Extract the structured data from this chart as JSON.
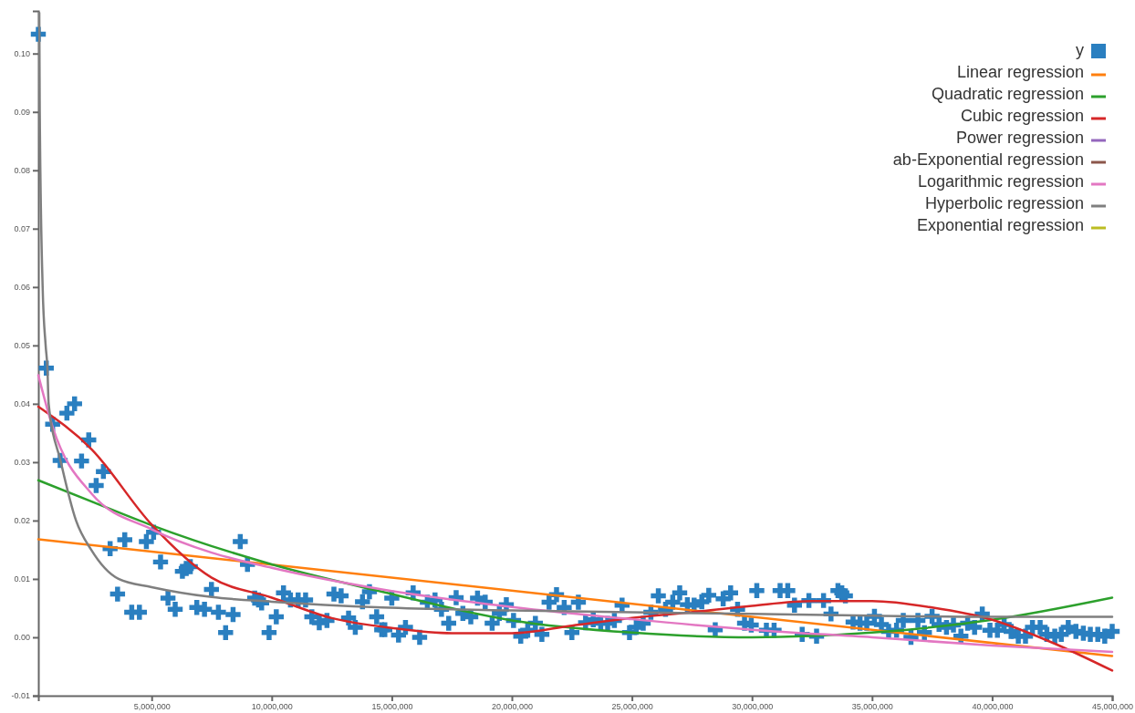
{
  "chart_data": {
    "type": "scatter",
    "xlim": [
      280000,
      45000000
    ],
    "ylim": [
      -0.01,
      0.1073
    ],
    "xticks": [
      {
        "value": 5000000,
        "label": "5,000,000"
      },
      {
        "value": 10000000,
        "label": "10,000,000"
      },
      {
        "value": 15000000,
        "label": "15,000,000"
      },
      {
        "value": 20000000,
        "label": "20,000,000"
      },
      {
        "value": 25000000,
        "label": "25,000,000"
      },
      {
        "value": 30000000,
        "label": "30,000,000"
      },
      {
        "value": 35000000,
        "label": "35,000,000"
      },
      {
        "value": 40000000,
        "label": "40,000,000"
      },
      {
        "value": 45000000,
        "label": "45,000,000"
      }
    ],
    "yticks": [
      -0.01,
      {
        "value": 0,
        "label": "0.00"
      },
      0.01,
      0.02,
      0.03,
      0.04,
      0.05,
      0.06,
      0.07,
      0.08,
      0.09,
      {
        "value": 0.1,
        "label": "0.10"
      }
    ],
    "grid": false,
    "legend": "top right",
    "series": [
      {
        "name": "y",
        "marker": "cross",
        "color": "#2a7fc0",
        "x": [
          280000,
          612000,
          877000,
          1190000,
          1470000,
          1790000,
          2080000,
          2380000,
          2690000,
          2990000,
          3270000,
          3580000,
          3880000,
          4170000,
          4490000,
          4780000,
          5080000,
          5370000,
          5680000,
          5980000,
          6280000,
          6440000,
          6610000,
          6880000,
          7200000,
          7490000,
          7780000,
          8080000,
          8390000,
          8690000,
          8990000,
          9290000,
          9450000,
          9580000,
          9890000,
          10190000,
          10490000,
          10780000,
          11100000,
          11410000,
          11670000,
          11980000,
          12300000,
          12590000,
          12890000,
          13200000,
          13480000,
          13780000,
          14070000,
          14370000,
          14580000,
          14710000,
          15000000,
          15280000,
          15570000,
          15890000,
          16160000,
          16480000,
          16800000,
          17070000,
          17370000,
          17680000,
          17960000,
          18290000,
          18570000,
          18890000,
          19180000,
          19480000,
          19770000,
          20070000,
          20370000,
          20660000,
          20980000,
          21250000,
          21550000,
          21860000,
          22180000,
          22500000,
          22770000,
          23070000,
          23390000,
          23700000,
          23990000,
          24270000,
          24590000,
          24900000,
          25180000,
          25470000,
          25790000,
          26100000,
          26400000,
          26700000,
          26990000,
          27310000,
          27590000,
          27910000,
          28200000,
          28470000,
          28800000,
          29110000,
          29400000,
          29690000,
          29970000,
          30200000,
          30600000,
          30920000,
          31170000,
          31490000,
          31770000,
          32090000,
          32370000,
          32690000,
          32980000,
          33290000,
          33580000,
          33740000,
          33890000,
          34210000,
          34500000,
          34780000,
          35100000,
          35390000,
          35690000,
          36020000,
          36300000,
          36620000,
          36910000,
          37180000,
          37500000,
          37790000,
          38100000,
          38390000,
          38700000,
          38980000,
          39270000,
          39590000,
          39910000,
          40220000,
          40500000,
          40790000,
          41090000,
          41390000,
          41680000,
          42000000,
          42280000,
          42610000,
          42880000,
          43170000,
          43490000,
          43800000,
          44090000,
          44400000,
          44690000,
          45000000
        ],
        "values": [
          0.1033,
          0.0461,
          0.0365,
          0.0303,
          0.0384,
          0.04,
          0.0302,
          0.0338,
          0.026,
          0.0284,
          0.0152,
          0.0074,
          0.0167,
          0.0043,
          0.0043,
          0.0164,
          0.018,
          0.0129,
          0.0067,
          0.0048,
          0.0113,
          0.0118,
          0.0121,
          0.0051,
          0.0048,
          0.0082,
          0.0043,
          0.0008,
          0.0039,
          0.0164,
          0.0125,
          0.0067,
          0.0064,
          0.0059,
          0.0008,
          0.0035,
          0.0076,
          0.0064,
          0.0064,
          0.0064,
          0.0035,
          0.0025,
          0.0029,
          0.0074,
          0.0071,
          0.0033,
          0.0017,
          0.0061,
          0.0078,
          0.0035,
          0.0013,
          0.0013,
          0.0067,
          0.0004,
          0.0017,
          0.0076,
          0.0,
          0.006,
          0.0064,
          0.0048,
          0.0024,
          0.0068,
          0.0041,
          0.0035,
          0.0067,
          0.006,
          0.0024,
          0.0041,
          0.0056,
          0.0029,
          0.0002,
          0.0012,
          0.0024,
          0.0005,
          0.006,
          0.0073,
          0.0051,
          0.0008,
          0.006,
          0.0025,
          0.003,
          0.0024,
          0.0024,
          0.0029,
          0.0055,
          0.0008,
          0.0017,
          0.0024,
          0.0043,
          0.0071,
          0.0048,
          0.006,
          0.0076,
          0.0056,
          0.0055,
          0.0061,
          0.0072,
          0.0013,
          0.0066,
          0.0076,
          0.0048,
          0.0024,
          0.0021,
          0.008,
          0.0012,
          0.0012,
          0.008,
          0.008,
          0.0055,
          0.0005,
          0.0063,
          0.0002,
          0.0063,
          0.004,
          0.008,
          0.0076,
          0.0071,
          0.0026,
          0.0024,
          0.0024,
          0.0036,
          0.0022,
          0.001,
          0.0012,
          0.0029,
          0.0,
          0.0029,
          0.0008,
          0.0036,
          0.0022,
          0.0017,
          0.0021,
          0.0002,
          0.0024,
          0.0017,
          0.004,
          0.0012,
          0.0012,
          0.0022,
          0.001,
          0.0002,
          0.0002,
          0.0017,
          0.0017,
          0.0005,
          0.0002,
          0.0005,
          0.0017,
          0.001,
          0.0007,
          0.0005,
          0.0005,
          0.0002,
          0.001
        ]
      },
      {
        "name": "Linear regression",
        "type": "line",
        "color": "#ff7f0e",
        "x": [
          280000,
          45000000
        ],
        "values": [
          0.0168,
          -0.0032
        ]
      },
      {
        "name": "Quadratic regression",
        "type": "line",
        "color": "#2ca02c",
        "x": [
          280000,
          2600000,
          5000000,
          10000000,
          14400000,
          20000000,
          25000000,
          30000000,
          35000000,
          40000000,
          45000000
        ],
        "values": [
          0.0269,
          0.0231,
          0.0192,
          0.0125,
          0.008,
          0.0029,
          0.0008,
          0.0,
          0.0008,
          0.003,
          0.0068
        ]
      },
      {
        "name": "Cubic regression",
        "type": "line",
        "color": "#d62728",
        "x": [
          280000,
          2500000,
          5000000,
          7500000,
          10000000,
          12500000,
          15000000,
          17500000,
          20000000,
          22500000,
          25000000,
          27500000,
          30000000,
          32500000,
          35000000,
          37500000,
          40000000,
          42500000,
          45000000
        ],
        "values": [
          0.0395,
          0.0322,
          0.0193,
          0.0102,
          0.0068,
          0.0033,
          0.0016,
          0.0007,
          0.0007,
          0.002,
          0.0033,
          0.0043,
          0.0054,
          0.0062,
          0.0062,
          0.0051,
          0.003,
          -0.0009,
          -0.0057
        ]
      },
      {
        "name": "Power regression",
        "type": "line",
        "color": "#9467bd"
      },
      {
        "name": "ab-Exponential regression",
        "type": "line",
        "color": "#8c564b"
      },
      {
        "name": "Logarithmic regression",
        "type": "line",
        "color": "#e377c2",
        "x": [
          280000,
          877000,
          2500000,
          5000000,
          7500000,
          10000000,
          14600000,
          20000000,
          25000000,
          30000000,
          35000000,
          40000000,
          45000000
        ],
        "values": [
          0.0449,
          0.036,
          0.0246,
          0.0185,
          0.0145,
          0.0119,
          0.0082,
          0.0052,
          0.0031,
          0.0013,
          0.0,
          -0.0014,
          -0.0025
        ]
      },
      {
        "name": "Hyperbolic regression",
        "type": "line",
        "color": "#7f7f7f",
        "x": [
          320000,
          340000,
          460000,
          585000,
          660000,
          710000,
          1220000,
          1850000,
          2480000,
          3620000,
          5000000,
          7500000,
          10000000,
          14600000,
          20000000,
          25000000,
          30000000,
          35000000,
          40000000,
          45000000
        ],
        "values": [
          0.107,
          0.09,
          0.06,
          0.05,
          0.046,
          0.04,
          0.03,
          0.02,
          0.015,
          0.01,
          0.0086,
          0.0069,
          0.0061,
          0.0051,
          0.0046,
          0.0043,
          0.004,
          0.0037,
          0.0035,
          0.0035
        ]
      },
      {
        "name": "Exponential regression",
        "type": "line",
        "color": "#bcbd22"
      }
    ]
  }
}
